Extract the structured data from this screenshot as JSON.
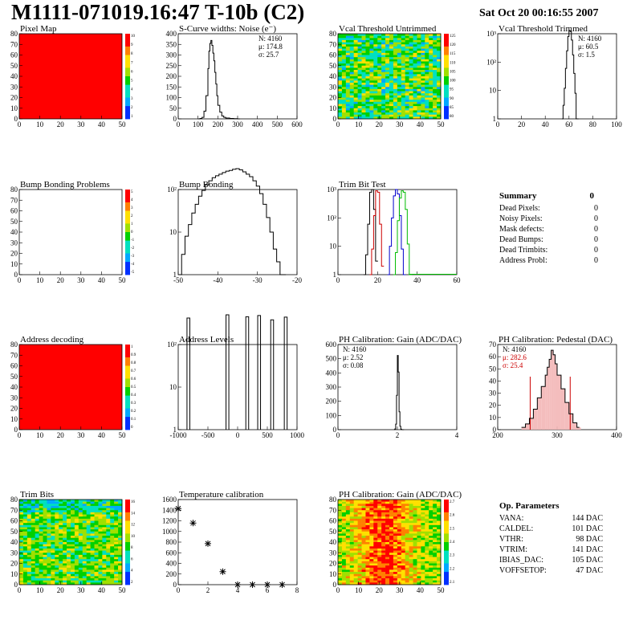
{
  "header": {
    "title": "M1111-071019.16:47 T-10b (C2)",
    "date": "Sat Oct 20 00:16:55 2007"
  },
  "colors": {
    "red": "#ff0000",
    "histogram_line": "#000000",
    "trim_red": "#cc0000",
    "trim_blue": "#0000cc",
    "trim_green": "#00bb00"
  },
  "panels": [
    {
      "id": "pixel_map",
      "title": "Pixel Map",
      "type": "heatmap",
      "x_ticks": [
        "0",
        "10",
        "20",
        "30",
        "40",
        "50"
      ],
      "y_ticks": [
        "0",
        "10",
        "20",
        "30",
        "40",
        "50",
        "60",
        "70",
        "80"
      ],
      "fill": "uniform-red",
      "colorbar_ticks": [
        "10",
        "9",
        "8",
        "7",
        "6",
        "5",
        "4",
        "3",
        "2",
        "1"
      ]
    },
    {
      "id": "scurve_noise",
      "title": "S-Curve widths: Noise (e⁻)",
      "type": "histogram",
      "x_ticks": [
        "0",
        "100",
        "200",
        "300",
        "400",
        "500",
        "600"
      ],
      "y_ticks": [
        "0",
        "50",
        "100",
        "150",
        "200",
        "250",
        "300",
        "350",
        "400"
      ],
      "stats": [
        "N: 4160",
        "μ: 174.8",
        "σ: 25.7"
      ]
    },
    {
      "id": "vcal_untrimmed",
      "title": "Vcal Threshold Untrimmed",
      "type": "heatmap",
      "x_ticks": [
        "0",
        "10",
        "20",
        "30",
        "40",
        "50"
      ],
      "y_ticks": [
        "0",
        "10",
        "20",
        "30",
        "40",
        "50",
        "60",
        "70",
        "80"
      ],
      "fill": "noise-green",
      "colorbar_ticks": [
        "125",
        "120",
        "115",
        "110",
        "105",
        "100",
        "95",
        "90",
        "85",
        "80"
      ]
    },
    {
      "id": "vcal_trimmed",
      "title": "Vcal Threshold Trimmed",
      "type": "histogram",
      "x_ticks": [
        "0",
        "20",
        "40",
        "60",
        "80",
        "100"
      ],
      "y_ticks": [
        "1",
        "10",
        "10²",
        "10³"
      ],
      "stats": [
        "N: 4160",
        "μ: 60.5",
        "σ:  1.5"
      ],
      "log_y": true
    },
    {
      "id": "bump_problems",
      "title": "Bump Bonding Problems",
      "type": "heatmap",
      "x_ticks": [
        "0",
        "10",
        "20",
        "30",
        "40",
        "50"
      ],
      "y_ticks": [
        "0",
        "10",
        "20",
        "30",
        "40",
        "50",
        "60",
        "70",
        "80"
      ],
      "fill": "empty",
      "colorbar_ticks": [
        "5",
        "4",
        "3",
        "2",
        "1",
        "0",
        "-1",
        "-2",
        "-3",
        "-4",
        "-5"
      ]
    },
    {
      "id": "bump_bonding",
      "title": "Bump Bonding",
      "type": "histogram",
      "x_ticks": [
        "-50",
        "-40",
        "-30",
        "-20"
      ],
      "y_ticks": [
        "1",
        "10",
        "10²"
      ],
      "log_y": true
    },
    {
      "id": "trim_bit_test",
      "title": "Trim Bit Test",
      "type": "histogram",
      "x_ticks": [
        "0",
        "20",
        "40",
        "60"
      ],
      "y_ticks": [
        "1",
        "10",
        "10²",
        "10³"
      ],
      "log_y": true
    },
    {
      "id": "address_decoding",
      "title": "Address decoding",
      "type": "heatmap",
      "x_ticks": [
        "0",
        "10",
        "20",
        "30",
        "40",
        "50"
      ],
      "y_ticks": [
        "0",
        "10",
        "20",
        "30",
        "40",
        "50",
        "60",
        "70",
        "80"
      ],
      "fill": "uniform-red",
      "colorbar_ticks": [
        "1",
        "0.9",
        "0.8",
        "0.7",
        "0.6",
        "0.5",
        "0.4",
        "0.3",
        "0.2",
        "0.1",
        "0"
      ]
    },
    {
      "id": "address_levels",
      "title": "Address Levels",
      "type": "histogram",
      "x_ticks": [
        "-1000",
        "-500",
        "0",
        "500",
        "1000"
      ],
      "y_ticks": [
        "1",
        "10",
        "10²"
      ],
      "log_y": true
    },
    {
      "id": "ph_gain",
      "title": "PH Calibration: Gain (ADC/DAC)",
      "type": "histogram",
      "x_ticks": [
        "0",
        "2",
        "4"
      ],
      "y_ticks": [
        "0",
        "100",
        "200",
        "300",
        "400",
        "500",
        "600"
      ],
      "stats": [
        "N: 4160",
        "μ: 2.52",
        "σ: 0.08"
      ]
    },
    {
      "id": "ph_pedestal",
      "title": "PH Calibration: Pedestal (DAC)",
      "type": "histogram",
      "x_ticks": [
        "200",
        "300",
        "400"
      ],
      "y_ticks": [
        "0",
        "10",
        "20",
        "30",
        "40",
        "50",
        "60",
        "70"
      ],
      "stats": [
        "N: 4160",
        "μ: 282.6",
        "σ: 25.4"
      ]
    },
    {
      "id": "trim_bits",
      "title": "Trim Bits",
      "type": "heatmap",
      "x_ticks": [
        "0",
        "10",
        "20",
        "30",
        "40",
        "50"
      ],
      "y_ticks": [
        "0",
        "10",
        "20",
        "30",
        "40",
        "50",
        "60",
        "70",
        "80"
      ],
      "fill": "trim-green",
      "colorbar_ticks": [
        "16",
        "14",
        "12",
        "10",
        "8",
        "6",
        "4",
        "2"
      ]
    },
    {
      "id": "temperature_calibration",
      "title": "Temperature calibration",
      "type": "scatter",
      "x_ticks": [
        "0",
        "2",
        "4",
        "6",
        "8"
      ],
      "y_ticks": [
        "0",
        "200",
        "400",
        "600",
        "800",
        "1000",
        "1200",
        "1400",
        "1600"
      ]
    },
    {
      "id": "ph_gain_map",
      "title": "PH Calibration: Gain (ADC/DAC)",
      "type": "heatmap",
      "x_ticks": [
        "0",
        "10",
        "20",
        "30",
        "40",
        "50"
      ],
      "y_ticks": [
        "0",
        "10",
        "20",
        "30",
        "40",
        "50",
        "60",
        "70",
        "80"
      ],
      "fill": "gain-map",
      "colorbar_ticks": [
        "2.7",
        "2.6",
        "2.5",
        "2.4",
        "2.3",
        "2.2",
        "2.1"
      ]
    }
  ],
  "summary": {
    "heading": "Summary",
    "heading_value": "0",
    "rows": [
      {
        "label": "Dead Pixels:",
        "value": "0"
      },
      {
        "label": "Noisy Pixels:",
        "value": "0"
      },
      {
        "label": "Mask defects:",
        "value": "0"
      },
      {
        "label": "Dead Bumps:",
        "value": "0"
      },
      {
        "label": "Dead Trimbits:",
        "value": "0"
      },
      {
        "label": "Address Probl:",
        "value": "0"
      }
    ]
  },
  "op_parameters": {
    "heading": "Op. Parameters",
    "rows": [
      {
        "label": "VANA:",
        "value": "144 DAC"
      },
      {
        "label": "CALDEL:",
        "value": "101 DAC"
      },
      {
        "label": "VTHR:",
        "value": "98 DAC"
      },
      {
        "label": "VTRIM:",
        "value": "141 DAC"
      },
      {
        "label": "IBIAS_DAC:",
        "value": "105 DAC"
      },
      {
        "label": "VOFFSETOP:",
        "value": "47 DAC"
      }
    ]
  },
  "chart_data": [
    {
      "type": "histogram",
      "title": "S-Curve widths: Noise (e⁻)",
      "x": [
        100,
        110,
        120,
        130,
        140,
        150,
        155,
        160,
        165,
        170,
        175,
        180,
        185,
        190,
        195,
        200,
        210,
        220,
        230,
        240,
        260,
        280,
        300
      ],
      "values": [
        0,
        2,
        8,
        40,
        120,
        260,
        350,
        390,
        405,
        380,
        340,
        300,
        240,
        180,
        120,
        70,
        35,
        15,
        8,
        4,
        2,
        1,
        0
      ],
      "xlim": [
        0,
        600
      ],
      "ylim": [
        0,
        440
      ],
      "stats": {
        "N": 4160,
        "mean": 174.8,
        "sigma": 25.7
      }
    },
    {
      "type": "histogram",
      "title": "Vcal Threshold Trimmed",
      "log_y": true,
      "x": [
        54,
        55,
        56,
        57,
        58,
        59,
        60,
        61,
        62,
        63,
        64,
        65,
        66
      ],
      "values": [
        1,
        3,
        12,
        60,
        250,
        800,
        1300,
        1200,
        600,
        180,
        40,
        8,
        1
      ],
      "xlim": [
        0,
        100
      ],
      "stats": {
        "N": 4160,
        "mean": 60.5,
        "sigma": 1.5
      }
    },
    {
      "type": "histogram",
      "title": "Bump Bonding",
      "log_y": true,
      "x": [
        -50,
        -49,
        -48,
        -47,
        -46,
        -45,
        -44,
        -43,
        -42,
        -41,
        -40,
        -39,
        -38,
        -37,
        -36,
        -35,
        -34,
        -33,
        -32,
        -31,
        -30,
        -29,
        -28,
        -27,
        -26,
        -25,
        -24,
        -23,
        -22,
        -21,
        -20,
        -19
      ],
      "values": [
        1,
        3,
        8,
        15,
        28,
        45,
        70,
        95,
        130,
        160,
        190,
        210,
        230,
        250,
        270,
        280,
        300,
        310,
        290,
        260,
        230,
        200,
        160,
        120,
        80,
        45,
        22,
        10,
        4,
        2,
        1,
        1
      ],
      "xlim": [
        -50,
        -15
      ]
    },
    {
      "type": "histogram",
      "title": "Trim Bit Test",
      "log_y": true,
      "series": [
        {
          "name": "",
          "color": "#000000",
          "x": [
            13,
            14,
            15,
            16,
            17,
            18,
            19
          ],
          "values": [
            1,
            5,
            60,
            800,
            1000,
            200,
            3
          ]
        },
        {
          "name": "",
          "color": "#cc0000",
          "x": [
            16,
            17,
            18,
            19,
            20,
            21,
            22
          ],
          "values": [
            1,
            8,
            120,
            900,
            800,
            60,
            2
          ]
        },
        {
          "name": "",
          "color": "#0000cc",
          "x": [
            25,
            26,
            27,
            28,
            29,
            30,
            31,
            32,
            33
          ],
          "values": [
            1,
            10,
            100,
            600,
            1000,
            700,
            120,
            8,
            1
          ]
        },
        {
          "name": "",
          "color": "#00bb00",
          "x": [
            28,
            29,
            30,
            31,
            32,
            33,
            34,
            35,
            36
          ],
          "values": [
            1,
            6,
            80,
            500,
            900,
            800,
            200,
            12,
            1
          ]
        }
      ],
      "xlim": [
        0,
        60
      ]
    },
    {
      "type": "histogram",
      "title": "Address Levels",
      "log_y": true,
      "peaks_x": [
        -920,
        -230,
        120,
        330,
        560,
        800
      ],
      "peaks_height": [
        420,
        500,
        450,
        480,
        380,
        440
      ],
      "xlim": [
        -1100,
        1000
      ]
    },
    {
      "type": "histogram",
      "title": "PH Calibration: Gain (ADC/DAC)",
      "x": [
        2.3,
        2.35,
        2.4,
        2.45,
        2.5,
        2.55,
        2.6,
        2.65,
        2.7,
        2.75
      ],
      "values": [
        1,
        5,
        40,
        250,
        540,
        420,
        130,
        25,
        4,
        0
      ],
      "xlim": [
        -1,
        6
      ],
      "ylim": [
        0,
        620
      ],
      "stats": {
        "N": 4160,
        "mean": 2.52,
        "sigma": 0.08
      }
    },
    {
      "type": "histogram",
      "title": "PH Calibration: Pedestal (DAC)",
      "x": [
        210,
        220,
        230,
        240,
        250,
        260,
        270,
        275,
        280,
        285,
        290,
        295,
        300,
        310,
        320,
        330,
        340,
        350
      ],
      "values": [
        2,
        5,
        10,
        18,
        28,
        38,
        48,
        55,
        62,
        70,
        66,
        58,
        48,
        36,
        24,
        14,
        6,
        2
      ],
      "xlim": [
        150,
        450
      ],
      "ylim": [
        0,
        75
      ],
      "fit_bounds": [
        232,
        333
      ],
      "stats": {
        "N": 4160,
        "mean": 282.6,
        "sigma": 25.4
      }
    },
    {
      "type": "scatter",
      "title": "Temperature calibration",
      "x": [
        0,
        1,
        2,
        3,
        4,
        5,
        6,
        7
      ],
      "values": [
        1520,
        1230,
        820,
        260,
        0,
        0,
        0,
        0
      ],
      "xlim": [
        0,
        8
      ],
      "ylim": [
        0,
        1700
      ]
    }
  ]
}
